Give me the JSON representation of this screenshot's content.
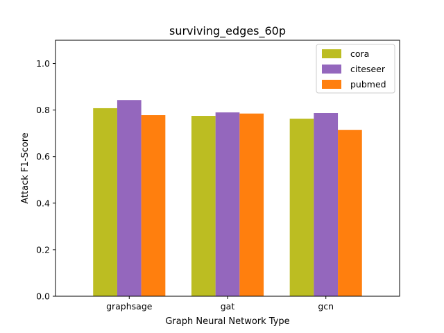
{
  "chart_data": {
    "type": "bar",
    "title": "surviving_edges_60p",
    "xlabel": "Graph Neural Network Type",
    "ylabel": "Attack F1-Score",
    "categories": [
      "graphsage",
      "gat",
      "gcn"
    ],
    "ylim": [
      0,
      1.1
    ],
    "yticks": [
      "0.0",
      "0.2",
      "0.4",
      "0.6",
      "0.8",
      "1.0"
    ],
    "series": [
      {
        "name": "cora",
        "color": "#bcbd22",
        "values": [
          0.808,
          0.775,
          0.763
        ]
      },
      {
        "name": "citeseer",
        "color": "#9467bd",
        "values": [
          0.843,
          0.79,
          0.787
        ]
      },
      {
        "name": "pubmed",
        "color": "#ff7f0e",
        "values": [
          0.778,
          0.785,
          0.715
        ]
      }
    ],
    "grid": false,
    "legend": "top-right"
  }
}
